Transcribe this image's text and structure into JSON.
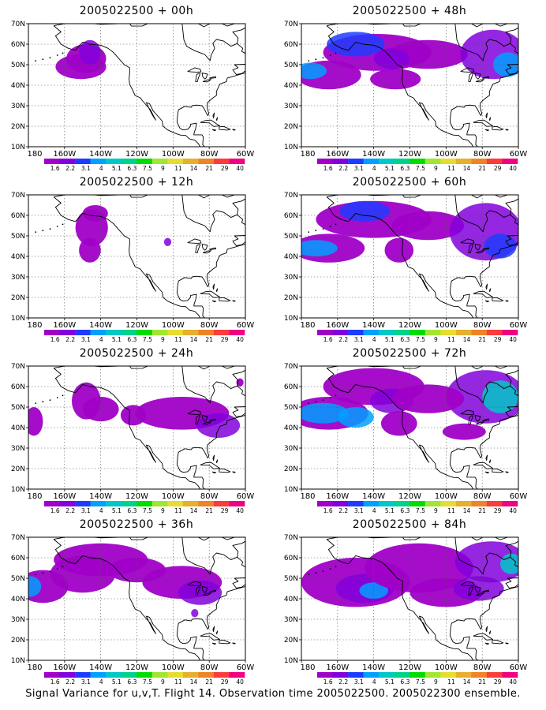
{
  "caption": "Signal Variance for u,v,T. Flight 14. Observation time 2005022500. 2005022300 ensemble.",
  "y_ticks": [
    "70N",
    "60N",
    "50N",
    "40N",
    "30N",
    "20N",
    "10N"
  ],
  "x_ticks": [
    "180",
    "160W",
    "140W",
    "120W",
    "100W",
    "80W",
    "60W"
  ],
  "colorbar": {
    "labels": [
      "1.6",
      "2.2",
      "3.1",
      "4",
      "5.1",
      "6.3",
      "7.5",
      "9",
      "11",
      "14",
      "21",
      "29",
      "40"
    ],
    "colors": [
      "#a000c8",
      "#8200dc",
      "#1e3cff",
      "#00a0ff",
      "#00c8c8",
      "#00d28c",
      "#00dc00",
      "#a0e632",
      "#e6dc32",
      "#e6af2d",
      "#f08228",
      "#fa3c3c",
      "#f00082"
    ]
  },
  "panels": [
    {
      "title": "2005022500 + 00h"
    },
    {
      "title": "2005022500 + 48h"
    },
    {
      "title": "2005022500 + 12h"
    },
    {
      "title": "2005022500 + 60h"
    },
    {
      "title": "2005022500 + 24h"
    },
    {
      "title": "2005022500 + 72h"
    },
    {
      "title": "2005022500 + 36h"
    },
    {
      "title": "2005022500 + 84h"
    }
  ]
}
